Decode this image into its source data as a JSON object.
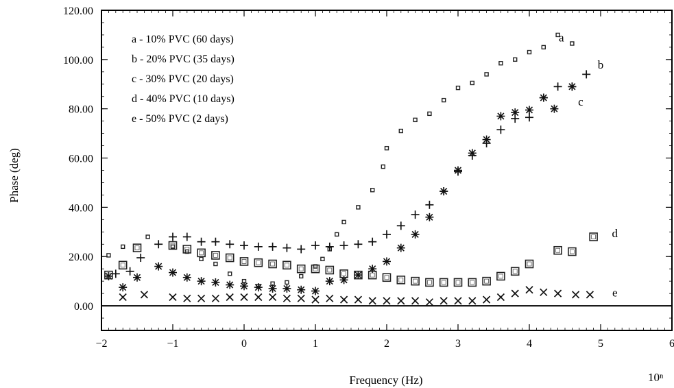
{
  "chart_data": {
    "type": "scatter",
    "title": "",
    "xlabel": "Frequency (Hz)",
    "x_exponent_label": "10ⁿ",
    "ylabel": "Phase (deg)",
    "xlim": [
      -2,
      6
    ],
    "ylim": [
      -10,
      120
    ],
    "x_ticks": [
      -2,
      -1,
      0,
      1,
      2,
      3,
      4,
      5,
      6
    ],
    "x_tick_labels": [
      "−2",
      "−1",
      "0",
      "1",
      "2",
      "3",
      "4",
      "5",
      "6"
    ],
    "y_ticks": [
      0,
      20,
      40,
      60,
      80,
      100,
      120
    ],
    "y_tick_labels": [
      "0.00",
      "20.00",
      "40.00",
      "60.00",
      "80.00",
      "100.00",
      "120.00"
    ],
    "grid": false,
    "zero_line": true,
    "legend_position": "top-left",
    "legend": [
      "a - 10% PVC (60 days)",
      "b - 20% PVC (35 days)",
      "c - 30% PVC (20 days)",
      "d - 40% PVC (10 days)",
      "e - 50% PVC (2 days)"
    ],
    "series": [
      {
        "name": "a",
        "marker": "small-square",
        "x": [
          -1.9,
          -1.7,
          -1.35,
          -1.0,
          -0.8,
          -0.6,
          -0.4,
          -0.2,
          0.0,
          0.2,
          0.4,
          0.6,
          0.8,
          1.0,
          1.1,
          1.2,
          1.3,
          1.4,
          1.6,
          1.8,
          1.95,
          2.0,
          2.2,
          2.4,
          2.6,
          2.8,
          3.0,
          3.2,
          3.4,
          3.6,
          3.8,
          4.0,
          4.2,
          4.4,
          4.6
        ],
        "y": [
          20.5,
          24,
          28,
          24,
          22,
          19,
          17,
          13,
          10,
          8,
          9,
          9.5,
          12,
          16,
          19,
          23,
          29,
          34,
          40,
          47,
          56.5,
          64,
          71,
          75.5,
          78,
          83.5,
          88.5,
          90.5,
          94,
          98.5,
          100,
          103,
          105,
          110,
          106.5
        ],
        "tag_label": "a",
        "tag_at": [
          4.45,
          109
        ]
      },
      {
        "name": "b",
        "marker": "plus",
        "x": [
          -1.8,
          -1.6,
          -1.45,
          -1.2,
          -1.0,
          -0.8,
          -0.6,
          -0.4,
          -0.2,
          0.0,
          0.2,
          0.4,
          0.6,
          0.8,
          1.0,
          1.2,
          1.4,
          1.6,
          1.8,
          2.0,
          2.2,
          2.4,
          2.6,
          2.8,
          3.0,
          3.2,
          3.4,
          3.6,
          3.8,
          4.0,
          4.2,
          4.4,
          4.6,
          4.8
        ],
        "y": [
          13,
          14,
          19.5,
          25,
          28,
          28,
          26,
          26,
          25,
          24.5,
          24,
          24,
          23.5,
          23,
          24.5,
          24,
          24.5,
          25,
          26,
          29,
          32.5,
          37,
          41,
          46.5,
          54.5,
          61,
          66,
          71.5,
          76,
          76.5,
          84.5,
          89,
          89,
          94
        ],
        "tag_label": "b",
        "tag_at": [
          5.0,
          98
        ]
      },
      {
        "name": "c",
        "marker": "asterisk",
        "x": [
          -1.9,
          -1.7,
          -1.5,
          -1.2,
          -1.0,
          -0.8,
          -0.6,
          -0.4,
          -0.2,
          0.0,
          0.2,
          0.4,
          0.6,
          0.8,
          1.0,
          1.2,
          1.4,
          1.6,
          1.8,
          2.0,
          2.2,
          2.4,
          2.6,
          2.8,
          3.0,
          3.2,
          3.4,
          3.6,
          3.8,
          4.0,
          4.2,
          4.35,
          4.6
        ],
        "y": [
          12,
          7.5,
          11.5,
          16,
          13.5,
          11.5,
          10,
          9.5,
          8.5,
          8,
          7.5,
          7,
          7,
          6.5,
          6,
          10,
          10.5,
          12.5,
          15,
          18,
          23.5,
          29,
          36,
          46.5,
          55,
          62,
          67.5,
          77,
          78.5,
          79.5,
          84.5,
          80,
          89
        ],
        "tag_label": "c",
        "tag_at": [
          4.72,
          83
        ]
      },
      {
        "name": "d",
        "marker": "open-square",
        "x": [
          -1.9,
          -1.7,
          -1.5,
          -1.0,
          -0.8,
          -0.6,
          -0.4,
          -0.2,
          0.0,
          0.2,
          0.4,
          0.6,
          0.8,
          1.0,
          1.2,
          1.4,
          1.6,
          1.8,
          2.0,
          2.2,
          2.4,
          2.6,
          2.8,
          3.0,
          3.2,
          3.4,
          3.6,
          3.8,
          4.0,
          4.4,
          4.6,
          4.9
        ],
        "y": [
          12.5,
          16.5,
          23.5,
          24.5,
          23,
          21.5,
          20.5,
          19.5,
          18,
          17.5,
          17,
          16.5,
          15,
          15,
          14.5,
          13,
          12.5,
          12.5,
          11.5,
          10.5,
          10,
          9.5,
          9.5,
          9.5,
          9.5,
          10,
          12,
          14,
          17,
          22.5,
          22,
          28
        ],
        "tag_label": "d",
        "tag_at": [
          5.2,
          29.5
        ]
      },
      {
        "name": "e",
        "marker": "cross",
        "x": [
          -1.7,
          -1.4,
          -1.0,
          -0.8,
          -0.6,
          -0.4,
          -0.2,
          0.0,
          0.2,
          0.4,
          0.6,
          0.8,
          1.0,
          1.2,
          1.4,
          1.6,
          1.8,
          2.0,
          2.2,
          2.4,
          2.6,
          2.8,
          3.0,
          3.2,
          3.4,
          3.6,
          3.8,
          4.0,
          4.2,
          4.4,
          4.65,
          4.85
        ],
        "y": [
          3.5,
          4.5,
          3.5,
          3,
          3,
          3,
          3.5,
          3.5,
          3.5,
          3.5,
          3,
          3,
          2.5,
          3,
          2.5,
          2.5,
          2,
          2,
          2,
          2,
          1.5,
          2,
          2,
          2,
          2.5,
          3.5,
          5,
          6.5,
          5.5,
          5,
          4.5,
          4.5
        ],
        "tag_label": "e",
        "tag_at": [
          5.2,
          5.5
        ]
      }
    ]
  }
}
